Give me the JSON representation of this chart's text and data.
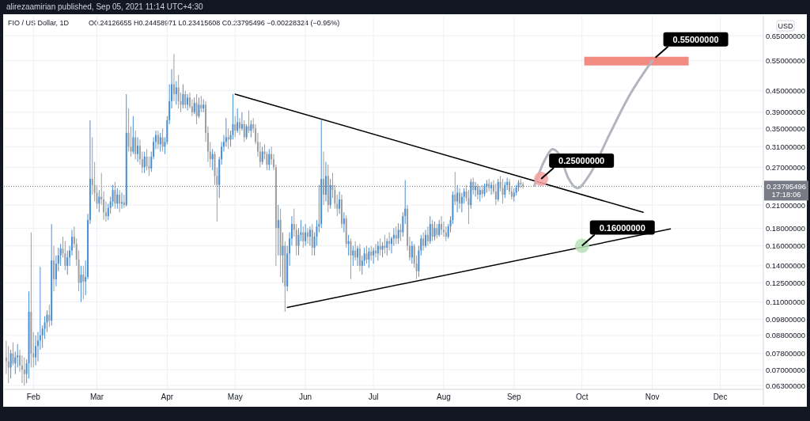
{
  "chart_data": {
    "type": "candlestick",
    "title": "FIO / US Dollar, 1D",
    "subtitle": "O0.24126655  H0.24458971  L0.23415608  C0.23795496  −0.00228324 (−0.95%)",
    "ylabel": "USD",
    "annotations": [
      "alirezaamirian published, Sep 05, 2021 11:14 UTC+4:30",
      "17:18:06",
      {
        "text": "0.55000000",
        "x": "2021-11-01",
        "y": 0.55
      }
    ],
    "log": "y",
    "grid": true,
    "xlim": [
      "2021-01-19",
      "2021-12-20"
    ],
    "xticks": [
      {
        "value": "2021-02-01",
        "label": "Feb"
      },
      {
        "value": "2021-03-01",
        "label": "Mar"
      },
      {
        "value": "2021-04-01",
        "label": "Apr"
      },
      {
        "value": "2021-05-01",
        "label": "May"
      },
      {
        "value": "2021-06-01",
        "label": "Jun"
      },
      {
        "value": "2021-07-01",
        "label": "Jul"
      },
      {
        "value": "2021-08-01",
        "label": "Aug"
      },
      {
        "value": "2021-09-01",
        "label": "Sep"
      },
      {
        "value": "2021-10-01",
        "label": "Oct"
      },
      {
        "value": "2021-11-01",
        "label": "Nov"
      },
      {
        "value": "2021-12-01",
        "label": "Dec"
      }
    ],
    "ylim": [
      0.0614,
      0.742
    ],
    "yticks": [
      {
        "value": 0.063,
        "label": "0.06300000"
      },
      {
        "value": 0.07,
        "label": "0.07000000"
      },
      {
        "value": 0.078,
        "label": "0.07800000"
      },
      {
        "value": 0.088,
        "label": "0.08800000"
      },
      {
        "value": 0.098,
        "label": "0.09800000"
      },
      {
        "value": 0.11,
        "label": "0.11000000"
      },
      {
        "value": 0.125,
        "label": "0.12500000"
      },
      {
        "value": 0.14,
        "label": "0.14000000"
      },
      {
        "value": 0.16,
        "label": "0.16000000"
      },
      {
        "value": 0.18,
        "label": "0.18000000"
      },
      {
        "value": 0.21,
        "label": "0.21000000"
      },
      {
        "value": 0.27,
        "label": "0.27000000"
      },
      {
        "value": 0.31,
        "label": "0.31000000"
      },
      {
        "value": 0.35,
        "label": "0.35000000"
      },
      {
        "value": 0.39,
        "label": "0.39000000"
      },
      {
        "value": 0.45,
        "label": "0.45000000"
      },
      {
        "value": 0.55,
        "label": "0.55000000"
      },
      {
        "value": 0.65,
        "label": "0.65000000"
      }
    ],
    "ref_lines": [
      {
        "axis": "y",
        "value": 0.23795496,
        "label": "0.23795496",
        "color": "#787b86",
        "line_style": "dotted"
      }
    ],
    "x": [
      "2021-01-20",
      "2021-01-21",
      "2021-01-22",
      "2021-01-23",
      "2021-01-24",
      "2021-01-25",
      "2021-01-26",
      "2021-01-27",
      "2021-01-28",
      "2021-01-29",
      "2021-01-30",
      "2021-01-31",
      "2021-02-01",
      "2021-02-02",
      "2021-02-03",
      "2021-02-04",
      "2021-02-05",
      "2021-02-06",
      "2021-02-07",
      "2021-02-08",
      "2021-02-09",
      "2021-02-10",
      "2021-02-11",
      "2021-02-12",
      "2021-02-13",
      "2021-02-14",
      "2021-02-15",
      "2021-02-16",
      "2021-02-17",
      "2021-02-18",
      "2021-02-19",
      "2021-02-20",
      "2021-02-21",
      "2021-02-22",
      "2021-02-23",
      "2021-02-24",
      "2021-02-25",
      "2021-02-26",
      "2021-02-27",
      "2021-02-28",
      "2021-03-01",
      "2021-03-02",
      "2021-03-03",
      "2021-03-04",
      "2021-03-05",
      "2021-03-06",
      "2021-03-07",
      "2021-03-08",
      "2021-03-09",
      "2021-03-10",
      "2021-03-11",
      "2021-03-12",
      "2021-03-13",
      "2021-03-14",
      "2021-03-15",
      "2021-03-16",
      "2021-03-17",
      "2021-03-18",
      "2021-03-19",
      "2021-03-20",
      "2021-03-21",
      "2021-03-22",
      "2021-03-23",
      "2021-03-24",
      "2021-03-25",
      "2021-03-26",
      "2021-03-27",
      "2021-03-28",
      "2021-03-29",
      "2021-03-30",
      "2021-03-31",
      "2021-04-01",
      "2021-04-02",
      "2021-04-03",
      "2021-04-04",
      "2021-04-05",
      "2021-04-06",
      "2021-04-07",
      "2021-04-08",
      "2021-04-09",
      "2021-04-10",
      "2021-04-11",
      "2021-04-12",
      "2021-04-13",
      "2021-04-14",
      "2021-04-15",
      "2021-04-16",
      "2021-04-17",
      "2021-04-18",
      "2021-04-19",
      "2021-04-20",
      "2021-04-21",
      "2021-04-22",
      "2021-04-23",
      "2021-04-24",
      "2021-04-25",
      "2021-04-26",
      "2021-04-27",
      "2021-04-28",
      "2021-04-29",
      "2021-04-30",
      "2021-05-01",
      "2021-05-02",
      "2021-05-03",
      "2021-05-04",
      "2021-05-05",
      "2021-05-06",
      "2021-05-07",
      "2021-05-08",
      "2021-05-09",
      "2021-05-10",
      "2021-05-11",
      "2021-05-12",
      "2021-05-13",
      "2021-05-14",
      "2021-05-15",
      "2021-05-16",
      "2021-05-17",
      "2021-05-18",
      "2021-05-19",
      "2021-05-20",
      "2021-05-21",
      "2021-05-22",
      "2021-05-23",
      "2021-05-24",
      "2021-05-25",
      "2021-05-26",
      "2021-05-27",
      "2021-05-28",
      "2021-05-29",
      "2021-05-30",
      "2021-05-31",
      "2021-06-01",
      "2021-06-02",
      "2021-06-03",
      "2021-06-04",
      "2021-06-05",
      "2021-06-06",
      "2021-06-07",
      "2021-06-08",
      "2021-06-09",
      "2021-06-10",
      "2021-06-11",
      "2021-06-12",
      "2021-06-13",
      "2021-06-14",
      "2021-06-15",
      "2021-06-16",
      "2021-06-17",
      "2021-06-18",
      "2021-06-19",
      "2021-06-20",
      "2021-06-21",
      "2021-06-22",
      "2021-06-23",
      "2021-06-24",
      "2021-06-25",
      "2021-06-26",
      "2021-06-27",
      "2021-06-28",
      "2021-06-29",
      "2021-06-30",
      "2021-07-01",
      "2021-07-02",
      "2021-07-03",
      "2021-07-04",
      "2021-07-05",
      "2021-07-06",
      "2021-07-07",
      "2021-07-08",
      "2021-07-09",
      "2021-07-10",
      "2021-07-11",
      "2021-07-12",
      "2021-07-13",
      "2021-07-14",
      "2021-07-15",
      "2021-07-16",
      "2021-07-17",
      "2021-07-18",
      "2021-07-19",
      "2021-07-20",
      "2021-07-21",
      "2021-07-22",
      "2021-07-23",
      "2021-07-24",
      "2021-07-25",
      "2021-07-26",
      "2021-07-27",
      "2021-07-28",
      "2021-07-29",
      "2021-07-30",
      "2021-07-31",
      "2021-08-01",
      "2021-08-02",
      "2021-08-03",
      "2021-08-04",
      "2021-08-05",
      "2021-08-06",
      "2021-08-07",
      "2021-08-08",
      "2021-08-09",
      "2021-08-10",
      "2021-08-11",
      "2021-08-12",
      "2021-08-13",
      "2021-08-14",
      "2021-08-15",
      "2021-08-16",
      "2021-08-17",
      "2021-08-18",
      "2021-08-19",
      "2021-08-20",
      "2021-08-21",
      "2021-08-22",
      "2021-08-23",
      "2021-08-24",
      "2021-08-25",
      "2021-08-26",
      "2021-08-27",
      "2021-08-28",
      "2021-08-29",
      "2021-08-30",
      "2021-08-31",
      "2021-09-01",
      "2021-09-02",
      "2021-09-03",
      "2021-09-04",
      "2021-09-05"
    ],
    "ohlc": [
      [
        0.076,
        0.085,
        0.068,
        0.074
      ],
      [
        0.074,
        0.082,
        0.064,
        0.071
      ],
      [
        0.071,
        0.08,
        0.066,
        0.078
      ],
      [
        0.078,
        0.084,
        0.072,
        0.073
      ],
      [
        0.073,
        0.079,
        0.068,
        0.076
      ],
      [
        0.076,
        0.083,
        0.071,
        0.077
      ],
      [
        0.077,
        0.08,
        0.069,
        0.072
      ],
      [
        0.072,
        0.077,
        0.064,
        0.07
      ],
      [
        0.07,
        0.076,
        0.063,
        0.068
      ],
      [
        0.068,
        0.075,
        0.064,
        0.073
      ],
      [
        0.073,
        0.118,
        0.066,
        0.103
      ],
      [
        0.103,
        0.175,
        0.071,
        0.078
      ],
      [
        0.078,
        0.09,
        0.071,
        0.076
      ],
      [
        0.076,
        0.088,
        0.072,
        0.082
      ],
      [
        0.082,
        0.09,
        0.074,
        0.085
      ],
      [
        0.085,
        0.139,
        0.08,
        0.088
      ],
      [
        0.088,
        0.094,
        0.081,
        0.092
      ],
      [
        0.092,
        0.1,
        0.086,
        0.096
      ],
      [
        0.096,
        0.104,
        0.09,
        0.101
      ],
      [
        0.101,
        0.108,
        0.093,
        0.097
      ],
      [
        0.097,
        0.185,
        0.094,
        0.145
      ],
      [
        0.145,
        0.16,
        0.118,
        0.128
      ],
      [
        0.128,
        0.15,
        0.122,
        0.142
      ],
      [
        0.142,
        0.158,
        0.135,
        0.15
      ],
      [
        0.15,
        0.162,
        0.14,
        0.157
      ],
      [
        0.157,
        0.17,
        0.148,
        0.152
      ],
      [
        0.152,
        0.165,
        0.136,
        0.14
      ],
      [
        0.14,
        0.155,
        0.132,
        0.148
      ],
      [
        0.148,
        0.16,
        0.14,
        0.155
      ],
      [
        0.155,
        0.178,
        0.15,
        0.17
      ],
      [
        0.17,
        0.182,
        0.158,
        0.162
      ],
      [
        0.162,
        0.168,
        0.14,
        0.146
      ],
      [
        0.146,
        0.155,
        0.118,
        0.125
      ],
      [
        0.125,
        0.14,
        0.11,
        0.132
      ],
      [
        0.132,
        0.14,
        0.112,
        0.126
      ],
      [
        0.126,
        0.145,
        0.115,
        0.13
      ],
      [
        0.13,
        0.198,
        0.128,
        0.19
      ],
      [
        0.19,
        0.37,
        0.185,
        0.25
      ],
      [
        0.25,
        0.33,
        0.225,
        0.24
      ],
      [
        0.24,
        0.28,
        0.215,
        0.228
      ],
      [
        0.228,
        0.24,
        0.205,
        0.212
      ],
      [
        0.212,
        0.232,
        0.2,
        0.222
      ],
      [
        0.222,
        0.26,
        0.21,
        0.218
      ],
      [
        0.218,
        0.23,
        0.19,
        0.2
      ],
      [
        0.2,
        0.215,
        0.188,
        0.195
      ],
      [
        0.195,
        0.212,
        0.19,
        0.206
      ],
      [
        0.206,
        0.222,
        0.198,
        0.215
      ],
      [
        0.215,
        0.24,
        0.208,
        0.232
      ],
      [
        0.232,
        0.245,
        0.205,
        0.212
      ],
      [
        0.212,
        0.235,
        0.205,
        0.225
      ],
      [
        0.225,
        0.232,
        0.2,
        0.212
      ],
      [
        0.212,
        0.228,
        0.205,
        0.214
      ],
      [
        0.214,
        0.225,
        0.206,
        0.21
      ],
      [
        0.21,
        0.44,
        0.208,
        0.34
      ],
      [
        0.34,
        0.4,
        0.3,
        0.31
      ],
      [
        0.31,
        0.355,
        0.29,
        0.3
      ],
      [
        0.3,
        0.38,
        0.295,
        0.33
      ],
      [
        0.33,
        0.345,
        0.285,
        0.295
      ],
      [
        0.295,
        0.33,
        0.28,
        0.312
      ],
      [
        0.312,
        0.325,
        0.275,
        0.285
      ],
      [
        0.285,
        0.3,
        0.26,
        0.27
      ],
      [
        0.27,
        0.3,
        0.26,
        0.29
      ],
      [
        0.29,
        0.305,
        0.265,
        0.272
      ],
      [
        0.272,
        0.29,
        0.255,
        0.268
      ],
      [
        0.268,
        0.3,
        0.262,
        0.29
      ],
      [
        0.29,
        0.33,
        0.285,
        0.32
      ],
      [
        0.32,
        0.345,
        0.305,
        0.335
      ],
      [
        0.335,
        0.345,
        0.305,
        0.315
      ],
      [
        0.315,
        0.34,
        0.3,
        0.33
      ],
      [
        0.33,
        0.35,
        0.3,
        0.31
      ],
      [
        0.31,
        0.33,
        0.295,
        0.32
      ],
      [
        0.32,
        0.38,
        0.315,
        0.37
      ],
      [
        0.37,
        0.47,
        0.36,
        0.42
      ],
      [
        0.42,
        0.52,
        0.4,
        0.47
      ],
      [
        0.47,
        0.575,
        0.42,
        0.44
      ],
      [
        0.44,
        0.48,
        0.41,
        0.46
      ],
      [
        0.46,
        0.5,
        0.4,
        0.42
      ],
      [
        0.42,
        0.445,
        0.39,
        0.41
      ],
      [
        0.41,
        0.47,
        0.4,
        0.44
      ],
      [
        0.44,
        0.45,
        0.4,
        0.41
      ],
      [
        0.41,
        0.44,
        0.395,
        0.43
      ],
      [
        0.43,
        0.445,
        0.4,
        0.405
      ],
      [
        0.405,
        0.425,
        0.38,
        0.39
      ],
      [
        0.39,
        0.43,
        0.385,
        0.415
      ],
      [
        0.415,
        0.44,
        0.36,
        0.38
      ],
      [
        0.38,
        0.43,
        0.375,
        0.41
      ],
      [
        0.41,
        0.435,
        0.39,
        0.4
      ],
      [
        0.4,
        0.425,
        0.39,
        0.41
      ],
      [
        0.41,
        0.42,
        0.32,
        0.34
      ],
      [
        0.34,
        0.355,
        0.28,
        0.3
      ],
      [
        0.3,
        0.32,
        0.27,
        0.285
      ],
      [
        0.285,
        0.305,
        0.265,
        0.295
      ],
      [
        0.295,
        0.3,
        0.24,
        0.255
      ],
      [
        0.255,
        0.27,
        0.188,
        0.24
      ],
      [
        0.24,
        0.29,
        0.22,
        0.285
      ],
      [
        0.285,
        0.32,
        0.275,
        0.31
      ],
      [
        0.31,
        0.335,
        0.3,
        0.32
      ],
      [
        0.32,
        0.375,
        0.31,
        0.33
      ],
      [
        0.33,
        0.35,
        0.305,
        0.325
      ],
      [
        0.325,
        0.345,
        0.31,
        0.335
      ],
      [
        0.335,
        0.44,
        0.325,
        0.36
      ],
      [
        0.36,
        0.38,
        0.33,
        0.345
      ],
      [
        0.345,
        0.4,
        0.34,
        0.365
      ],
      [
        0.365,
        0.375,
        0.335,
        0.35
      ],
      [
        0.35,
        0.39,
        0.345,
        0.36
      ],
      [
        0.36,
        0.37,
        0.32,
        0.33
      ],
      [
        0.33,
        0.36,
        0.325,
        0.355
      ],
      [
        0.355,
        0.395,
        0.34,
        0.345
      ],
      [
        0.345,
        0.37,
        0.33,
        0.36
      ],
      [
        0.36,
        0.375,
        0.34,
        0.35
      ],
      [
        0.35,
        0.36,
        0.315,
        0.32
      ],
      [
        0.32,
        0.34,
        0.29,
        0.3
      ],
      [
        0.3,
        0.32,
        0.27,
        0.28
      ],
      [
        0.28,
        0.31,
        0.275,
        0.3
      ],
      [
        0.3,
        0.315,
        0.285,
        0.295
      ],
      [
        0.295,
        0.3,
        0.265,
        0.275
      ],
      [
        0.275,
        0.305,
        0.265,
        0.295
      ],
      [
        0.295,
        0.31,
        0.275,
        0.285
      ],
      [
        0.285,
        0.295,
        0.265,
        0.27
      ],
      [
        0.27,
        0.275,
        0.14,
        0.18
      ],
      [
        0.18,
        0.21,
        0.15,
        0.19
      ],
      [
        0.19,
        0.205,
        0.13,
        0.15
      ],
      [
        0.15,
        0.175,
        0.125,
        0.16
      ],
      [
        0.16,
        0.165,
        0.103,
        0.122
      ],
      [
        0.122,
        0.16,
        0.118,
        0.152
      ],
      [
        0.152,
        0.175,
        0.14,
        0.168
      ],
      [
        0.168,
        0.195,
        0.16,
        0.185
      ],
      [
        0.185,
        0.205,
        0.17,
        0.178
      ],
      [
        0.178,
        0.185,
        0.15,
        0.16
      ],
      [
        0.16,
        0.18,
        0.15,
        0.172
      ],
      [
        0.172,
        0.19,
        0.165,
        0.175
      ],
      [
        0.175,
        0.182,
        0.158,
        0.165
      ],
      [
        0.165,
        0.185,
        0.16,
        0.175
      ],
      [
        0.175,
        0.18,
        0.162,
        0.17
      ],
      [
        0.17,
        0.182,
        0.16,
        0.178
      ],
      [
        0.178,
        0.185,
        0.15,
        0.158
      ],
      [
        0.158,
        0.175,
        0.15,
        0.17
      ],
      [
        0.17,
        0.19,
        0.16,
        0.182
      ],
      [
        0.182,
        0.24,
        0.175,
        0.185
      ],
      [
        0.185,
        0.37,
        0.18,
        0.25
      ],
      [
        0.25,
        0.3,
        0.21,
        0.225
      ],
      [
        0.225,
        0.28,
        0.215,
        0.255
      ],
      [
        0.255,
        0.275,
        0.2,
        0.21
      ],
      [
        0.21,
        0.25,
        0.205,
        0.24
      ],
      [
        0.24,
        0.26,
        0.22,
        0.232
      ],
      [
        0.232,
        0.24,
        0.205,
        0.212
      ],
      [
        0.212,
        0.225,
        0.195,
        0.205
      ],
      [
        0.205,
        0.23,
        0.198,
        0.218
      ],
      [
        0.218,
        0.225,
        0.18,
        0.185
      ],
      [
        0.185,
        0.2,
        0.175,
        0.192
      ],
      [
        0.192,
        0.196,
        0.158,
        0.162
      ],
      [
        0.162,
        0.172,
        0.15,
        0.165
      ],
      [
        0.165,
        0.168,
        0.128,
        0.15
      ],
      [
        0.15,
        0.16,
        0.14,
        0.155
      ],
      [
        0.155,
        0.165,
        0.145,
        0.148
      ],
      [
        0.148,
        0.16,
        0.14,
        0.157
      ],
      [
        0.157,
        0.162,
        0.135,
        0.14
      ],
      [
        0.14,
        0.15,
        0.132,
        0.145
      ],
      [
        0.145,
        0.158,
        0.14,
        0.152
      ],
      [
        0.152,
        0.16,
        0.142,
        0.146
      ],
      [
        0.146,
        0.158,
        0.138,
        0.154
      ],
      [
        0.154,
        0.16,
        0.145,
        0.15
      ],
      [
        0.15,
        0.158,
        0.142,
        0.155
      ],
      [
        0.155,
        0.162,
        0.148,
        0.152
      ],
      [
        0.152,
        0.165,
        0.145,
        0.16
      ],
      [
        0.16,
        0.168,
        0.15,
        0.156
      ],
      [
        0.156,
        0.164,
        0.148,
        0.16
      ],
      [
        0.16,
        0.172,
        0.152,
        0.158
      ],
      [
        0.158,
        0.168,
        0.15,
        0.165
      ],
      [
        0.165,
        0.175,
        0.155,
        0.162
      ],
      [
        0.162,
        0.17,
        0.152,
        0.168
      ],
      [
        0.168,
        0.18,
        0.16,
        0.172
      ],
      [
        0.172,
        0.182,
        0.162,
        0.168
      ],
      [
        0.168,
        0.186,
        0.162,
        0.178
      ],
      [
        0.178,
        0.185,
        0.165,
        0.175
      ],
      [
        0.175,
        0.2,
        0.17,
        0.195
      ],
      [
        0.195,
        0.248,
        0.185,
        0.205
      ],
      [
        0.205,
        0.21,
        0.155,
        0.16
      ],
      [
        0.16,
        0.17,
        0.145,
        0.148
      ],
      [
        0.148,
        0.165,
        0.142,
        0.16
      ],
      [
        0.16,
        0.162,
        0.138,
        0.142
      ],
      [
        0.142,
        0.15,
        0.128,
        0.135
      ],
      [
        0.135,
        0.16,
        0.13,
        0.155
      ],
      [
        0.155,
        0.172,
        0.15,
        0.168
      ],
      [
        0.168,
        0.175,
        0.155,
        0.16
      ],
      [
        0.16,
        0.178,
        0.158,
        0.172
      ],
      [
        0.172,
        0.182,
        0.16,
        0.165
      ],
      [
        0.165,
        0.195,
        0.162,
        0.185
      ],
      [
        0.185,
        0.19,
        0.165,
        0.17
      ],
      [
        0.17,
        0.188,
        0.166,
        0.18
      ],
      [
        0.18,
        0.185,
        0.168,
        0.172
      ],
      [
        0.172,
        0.19,
        0.17,
        0.185
      ],
      [
        0.185,
        0.195,
        0.172,
        0.178
      ],
      [
        0.178,
        0.188,
        0.17,
        0.175
      ],
      [
        0.175,
        0.182,
        0.165,
        0.17
      ],
      [
        0.17,
        0.185,
        0.168,
        0.182
      ],
      [
        0.182,
        0.195,
        0.175,
        0.19
      ],
      [
        0.19,
        0.23,
        0.185,
        0.225
      ],
      [
        0.225,
        0.262,
        0.21,
        0.215
      ],
      [
        0.215,
        0.24,
        0.2,
        0.228
      ],
      [
        0.228,
        0.235,
        0.205,
        0.212
      ],
      [
        0.212,
        0.228,
        0.2,
        0.222
      ],
      [
        0.222,
        0.235,
        0.212,
        0.23
      ],
      [
        0.23,
        0.24,
        0.215,
        0.22
      ],
      [
        0.22,
        0.232,
        0.185,
        0.21
      ],
      [
        0.21,
        0.25,
        0.205,
        0.245
      ],
      [
        0.245,
        0.252,
        0.225,
        0.232
      ],
      [
        0.232,
        0.245,
        0.222,
        0.238
      ],
      [
        0.238,
        0.242,
        0.218,
        0.225
      ],
      [
        0.225,
        0.238,
        0.215,
        0.232
      ],
      [
        0.232,
        0.24,
        0.22,
        0.226
      ],
      [
        0.226,
        0.242,
        0.222,
        0.238
      ],
      [
        0.238,
        0.248,
        0.228,
        0.242
      ],
      [
        0.242,
        0.25,
        0.23,
        0.235
      ],
      [
        0.235,
        0.245,
        0.225,
        0.24
      ],
      [
        0.24,
        0.248,
        0.226,
        0.23
      ],
      [
        0.23,
        0.242,
        0.21,
        0.218
      ],
      [
        0.218,
        0.25,
        0.215,
        0.245
      ],
      [
        0.245,
        0.255,
        0.23,
        0.235
      ],
      [
        0.235,
        0.25,
        0.212,
        0.225
      ],
      [
        0.225,
        0.245,
        0.22,
        0.24
      ],
      [
        0.24,
        0.252,
        0.232,
        0.245
      ],
      [
        0.245,
        0.25,
        0.225,
        0.23
      ],
      [
        0.23,
        0.238,
        0.218,
        0.222
      ],
      [
        0.222,
        0.235,
        0.215,
        0.228
      ],
      [
        0.228,
        0.24,
        0.224,
        0.236
      ],
      [
        0.236,
        0.248,
        0.23,
        0.244
      ],
      [
        0.244,
        0.25,
        0.235,
        0.241
      ],
      [
        0.24126655,
        0.24458971,
        0.23415608,
        0.23795496
      ]
    ],
    "series": [
      {
        "type": "line",
        "color": "#000000",
        "x": [
          "2021-05-01",
          "2021-10-28"
        ],
        "values": [
          0.44,
          0.2
        ]
      },
      {
        "type": "line",
        "color": "#000000",
        "x": [
          "2021-05-24",
          "2021-11-09"
        ],
        "values": [
          0.106,
          0.179
        ]
      },
      {
        "type": "line",
        "color": "#b2b5be",
        "x": [
          "2021-09-10",
          "2021-09-15",
          "2021-09-18",
          "2021-09-21",
          "2021-09-25",
          "2021-09-29",
          "2021-10-04",
          "2021-10-13",
          "2021-10-22",
          "2021-11-01"
        ],
        "values": [
          0.239,
          0.287,
          0.305,
          0.294,
          0.251,
          0.235,
          0.255,
          0.335,
          0.437,
          0.55
        ]
      },
      {
        "type": "scatter",
        "marker": "circle",
        "x": [
          "2021-09-13",
          "2021-10-01"
        ],
        "values": [
          0.25,
          0.16
        ],
        "colors": [
          "#f7a1a1",
          "#b5e0b5"
        ],
        "value_labels": [
          "0.25000000",
          "0.16000000"
        ]
      }
    ]
  }
}
